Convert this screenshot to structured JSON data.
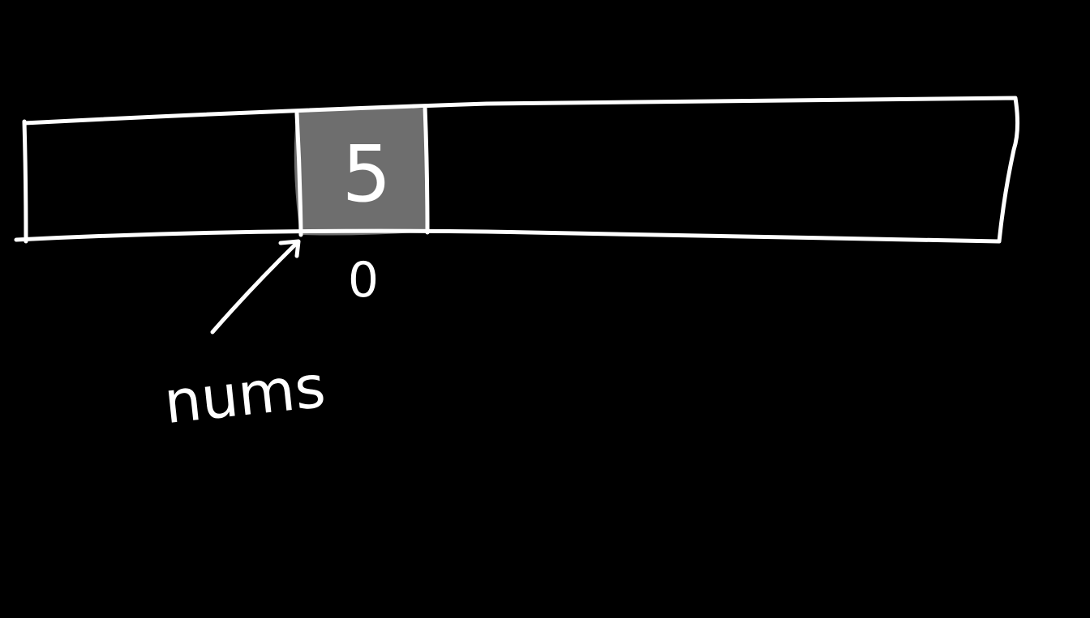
{
  "diagram": {
    "background_color": "#000000",
    "ink_color": "#ffffff",
    "highlight_color": "#6e6e6e",
    "array": {
      "cells": [
        {
          "value": "5",
          "index": "0",
          "highlighted": true
        }
      ]
    },
    "pointer": {
      "label": "nums",
      "icon": "arrow-icon"
    }
  }
}
